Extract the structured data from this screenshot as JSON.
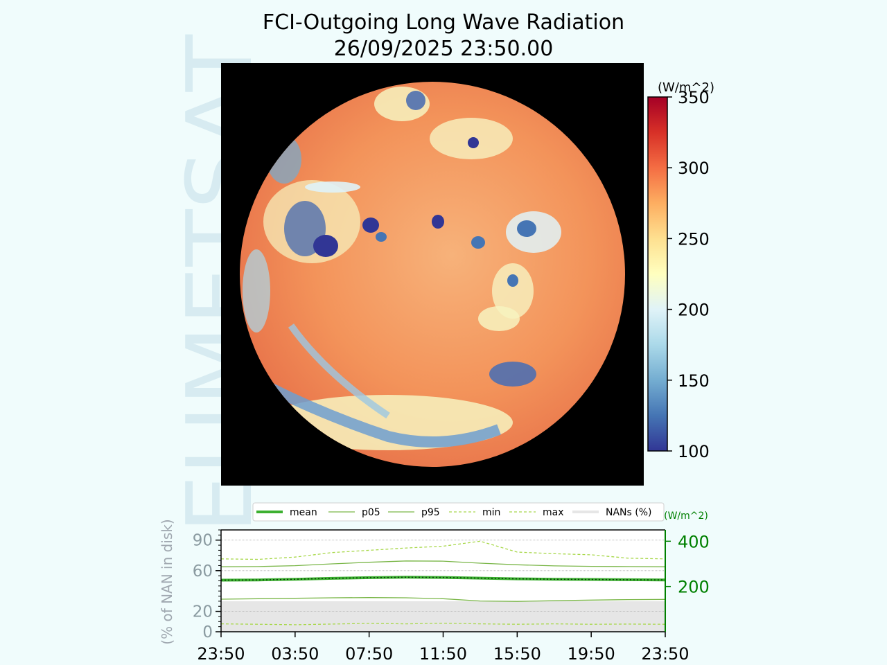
{
  "header": {
    "title": "FCI-Outgoing Long Wave Radiation",
    "timestamp": "26/09/2025 23:50.00"
  },
  "watermark": "EUMETSAT",
  "colorbar": {
    "unit": "(W/m^2)",
    "ticks": [
      "100",
      "150",
      "200",
      "250",
      "300",
      "350"
    ],
    "range": [
      100,
      350
    ],
    "colormap": "RdYlBu_r",
    "colors": [
      "#313695",
      "#4575b4",
      "#74add1",
      "#abd9e9",
      "#e0f3f8",
      "#ffffbf",
      "#fee090",
      "#fdae61",
      "#f46d43",
      "#d73027",
      "#a50026"
    ]
  },
  "map_panel": {
    "background": "#000000",
    "disk_colors": {
      "base": "#f08a50",
      "warm": "#f5a46a",
      "cold": "#4f6fb0",
      "cloud": "#f7f3c0"
    }
  },
  "chart_data": {
    "type": "line",
    "x": [
      "23:50",
      "01:50",
      "03:50",
      "05:50",
      "07:50",
      "09:50",
      "11:50",
      "13:50",
      "15:50",
      "17:50",
      "19:50",
      "21:50",
      "23:50"
    ],
    "xticks": [
      "23:50",
      "03:50",
      "07:50",
      "11:50",
      "15:50",
      "19:50",
      "23:50"
    ],
    "legend": [
      "mean",
      "p05",
      "p95",
      "min",
      "max",
      "NANs (%)"
    ],
    "legend_position": "top",
    "left_axis": {
      "label": "(% of NAN in disk)",
      "ticks": [
        "0",
        "20",
        "60",
        "90"
      ],
      "range": [
        0,
        100
      ],
      "color": "#8a9aa0"
    },
    "right_axis": {
      "unit": "(W/m^2)",
      "ticks": [
        "200",
        "400"
      ],
      "range": [
        0,
        450
      ],
      "color": "#008000"
    },
    "nan_percent": [
      30,
      30,
      30,
      30,
      30,
      30,
      30,
      30,
      30,
      30,
      30,
      30,
      30
    ],
    "series": [
      {
        "name": "mean",
        "values": [
          228,
          229,
          232,
          236,
          239,
          241,
          240,
          237,
          234,
          232,
          231,
          230,
          229
        ],
        "color": "#3cb030",
        "style": "solid-thick"
      },
      {
        "name": "p05",
        "values": [
          144,
          146,
          148,
          150,
          151,
          150,
          146,
          136,
          134,
          137,
          140,
          142,
          143
        ],
        "color": "#7ab648",
        "style": "solid"
      },
      {
        "name": "p95",
        "values": [
          287,
          288,
          292,
          300,
          307,
          313,
          312,
          303,
          296,
          291,
          289,
          288,
          287
        ],
        "color": "#7ab648",
        "style": "solid"
      },
      {
        "name": "min",
        "values": [
          35,
          33,
          31,
          34,
          37,
          35,
          38,
          35,
          33,
          35,
          33,
          34,
          33
        ],
        "color": "#a8d84a",
        "style": "dashed"
      },
      {
        "name": "max",
        "values": [
          322,
          320,
          330,
          350,
          360,
          370,
          378,
          400,
          352,
          345,
          340,
          325,
          322
        ],
        "color": "#a8d84a",
        "style": "dashed"
      }
    ]
  }
}
